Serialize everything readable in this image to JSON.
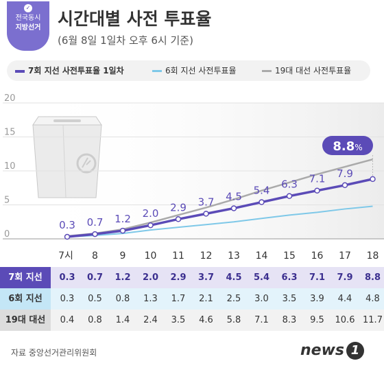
{
  "badge": {
    "line1": "전국동시",
    "line2": "지방선거"
  },
  "title": "시간대별 사전 투표율",
  "subtitle": "(6월 8일 1일차 오후 6시 기준)",
  "colors": {
    "purple": "#5b4bb7",
    "light_blue": "#7ec8e8",
    "gray": "#aaaaaa"
  },
  "chart_data": {
    "type": "line",
    "x": [
      "7시",
      "8",
      "9",
      "10",
      "11",
      "12",
      "13",
      "14",
      "15",
      "16",
      "17",
      "18"
    ],
    "ylim": [
      0,
      20
    ],
    "yticks": [
      "0",
      "5",
      "10",
      "15",
      "20"
    ],
    "grid": true,
    "legend": "top",
    "series": [
      {
        "name": "7회 지선 사전투표율 1일차",
        "values": [
          0.3,
          0.7,
          1.2,
          2.0,
          2.9,
          3.7,
          4.5,
          5.4,
          6.3,
          7.1,
          7.9,
          8.8
        ]
      },
      {
        "name": "6회 지선 사전투표율",
        "values": [
          0.3,
          0.5,
          0.8,
          1.3,
          1.7,
          2.1,
          2.5,
          3.0,
          3.5,
          3.9,
          4.4,
          4.8
        ]
      },
      {
        "name": "19대 대선 사전투표율",
        "values": [
          0.4,
          0.8,
          1.4,
          2.4,
          3.5,
          4.6,
          5.8,
          7.1,
          8.3,
          9.5,
          10.6,
          11.7
        ]
      }
    ],
    "callout": {
      "value": "8.8",
      "unit": "%"
    }
  },
  "table": {
    "rows": [
      {
        "label": "7회 지선",
        "values": [
          "0.3",
          "0.7",
          "1.2",
          "2.0",
          "2.9",
          "3.7",
          "4.5",
          "5.4",
          "6.3",
          "7.1",
          "7.9",
          "8.8"
        ]
      },
      {
        "label": "6회 지선",
        "values": [
          "0.3",
          "0.5",
          "0.8",
          "1.3",
          "1.7",
          "2.1",
          "2.5",
          "3.0",
          "3.5",
          "3.9",
          "4.4",
          "4.8"
        ]
      },
      {
        "label": "19대 대선",
        "values": [
          "0.4",
          "0.8",
          "1.4",
          "2.4",
          "3.5",
          "4.6",
          "5.8",
          "7.1",
          "8.3",
          "9.5",
          "10.6",
          "11.7"
        ]
      }
    ]
  },
  "source": "자료 중앙선거관리위원회",
  "logo": {
    "text": "news",
    "mark": "1"
  }
}
